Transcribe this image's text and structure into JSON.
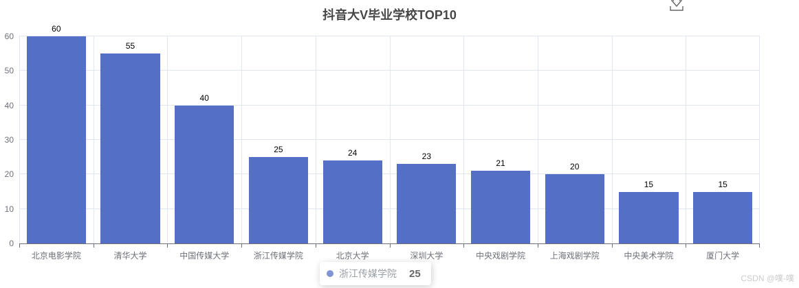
{
  "chart_data": {
    "type": "bar",
    "title": "抖音大V毕业学校TOP10",
    "categories": [
      "北京电影学院",
      "清华大学",
      "中国传媒大学",
      "浙江传媒学院",
      "北京大学",
      "深圳大学",
      "中央戏剧学院",
      "上海戏剧学院",
      "中央美术学院",
      "厦门大学"
    ],
    "values": [
      60,
      55,
      40,
      25,
      24,
      23,
      21,
      20,
      15,
      15
    ],
    "xlabel": "",
    "ylabel": "",
    "ylim": [
      0,
      60
    ],
    "y_ticks": [
      0,
      10,
      20,
      30,
      40,
      50,
      60
    ],
    "grid": true,
    "legend": false,
    "value_labels": "top",
    "bar_color": "#5470C6"
  },
  "toolbox": {
    "icon": "download-icon"
  },
  "tooltip": {
    "name": "浙江传媒学院",
    "value": "25",
    "marker_color": "#5470C6"
  },
  "watermark": "CSDN @噗-噗",
  "colors": {
    "bar": "#5470C6",
    "grid_line": "#E0E6F1",
    "axis_line": "#6E7079",
    "tick_label": "#6E7079",
    "value_label": "#000000",
    "title": "#464646",
    "watermark": "#CCCCCC",
    "tooltip_icon": "#666666"
  }
}
